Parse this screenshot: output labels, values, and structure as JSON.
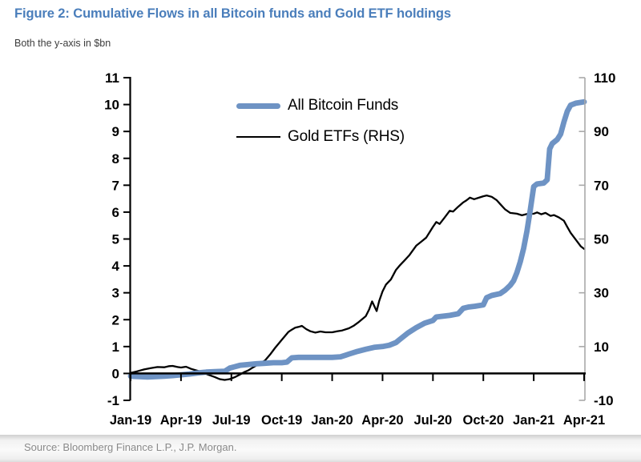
{
  "figure": {
    "title": "Figure 2: Cumulative Flows in all Bitcoin funds and Gold ETF holdings",
    "subtitle": "Both the y-axis in $bn",
    "source": "Source: Bloomberg Finance L.P., J.P. Morgan.",
    "title_color": "#4a7ebb"
  },
  "chart_data": {
    "type": "line",
    "title": "Cumulative Flows in all Bitcoin funds and Gold ETF holdings",
    "units_note": "Both the y-axis in $bn",
    "x_unit": "months since Jan-2019",
    "x_range": [
      0,
      27
    ],
    "x_tick_positions": [
      0,
      3,
      6,
      9,
      12,
      15,
      18,
      21,
      24,
      27
    ],
    "x_tick_labels": [
      "Jan-19",
      "Apr-19",
      "Jul-19",
      "Oct-19",
      "Jan-20",
      "Apr-20",
      "Jul-20",
      "Oct-20",
      "Jan-21",
      "Apr-21"
    ],
    "left_axis": {
      "min": -1,
      "max": 11,
      "ticks": [
        -1,
        0,
        1,
        2,
        3,
        4,
        5,
        6,
        7,
        8,
        9,
        10,
        11
      ],
      "color": "#000000"
    },
    "right_axis": {
      "min": -10,
      "max": 110,
      "ticks": [
        -10,
        10,
        30,
        50,
        70,
        90,
        110
      ],
      "color": "#a9a9a9"
    },
    "legend_position": "top-center",
    "grid": false,
    "series": [
      {
        "name": "All Bitcoin Funds",
        "axis": "left",
        "color": "#6e93c4",
        "width": 6.8,
        "points": [
          [
            0,
            -0.1
          ],
          [
            0.5,
            -0.12
          ],
          [
            1,
            -0.13
          ],
          [
            1.5,
            -0.12
          ],
          [
            2,
            -0.1
          ],
          [
            2.5,
            -0.08
          ],
          [
            3,
            -0.05
          ],
          [
            3.5,
            -0.02
          ],
          [
            4,
            0.02
          ],
          [
            4.5,
            0.05
          ],
          [
            5,
            0.07
          ],
          [
            5.6,
            0.08
          ],
          [
            5.9,
            0.2
          ],
          [
            6.2,
            0.25
          ],
          [
            6.5,
            0.3
          ],
          [
            7,
            0.33
          ],
          [
            7.5,
            0.36
          ],
          [
            8,
            0.38
          ],
          [
            8.5,
            0.4
          ],
          [
            9,
            0.4
          ],
          [
            9.3,
            0.42
          ],
          [
            9.45,
            0.5
          ],
          [
            9.6,
            0.58
          ],
          [
            10,
            0.6
          ],
          [
            10.5,
            0.6
          ],
          [
            11,
            0.6
          ],
          [
            11.5,
            0.6
          ],
          [
            12,
            0.6
          ],
          [
            12.5,
            0.62
          ],
          [
            12.8,
            0.68
          ],
          [
            13,
            0.72
          ],
          [
            13.5,
            0.82
          ],
          [
            14,
            0.9
          ],
          [
            14.5,
            0.97
          ],
          [
            15,
            1.0
          ],
          [
            15.4,
            1.05
          ],
          [
            15.8,
            1.15
          ],
          [
            16,
            1.25
          ],
          [
            16.5,
            1.5
          ],
          [
            17,
            1.7
          ],
          [
            17.5,
            1.87
          ],
          [
            18,
            1.97
          ],
          [
            18.2,
            2.1
          ],
          [
            18.6,
            2.13
          ],
          [
            19,
            2.16
          ],
          [
            19.5,
            2.22
          ],
          [
            19.8,
            2.42
          ],
          [
            20.1,
            2.47
          ],
          [
            20.5,
            2.5
          ],
          [
            21,
            2.55
          ],
          [
            21.2,
            2.82
          ],
          [
            21.5,
            2.9
          ],
          [
            22,
            2.97
          ],
          [
            22.3,
            3.1
          ],
          [
            22.6,
            3.28
          ],
          [
            22.8,
            3.45
          ],
          [
            23,
            3.75
          ],
          [
            23.2,
            4.15
          ],
          [
            23.4,
            4.65
          ],
          [
            23.6,
            5.3
          ],
          [
            23.8,
            6.1
          ],
          [
            24,
            6.95
          ],
          [
            24.2,
            7.05
          ],
          [
            24.6,
            7.08
          ],
          [
            24.8,
            7.2
          ],
          [
            24.95,
            8.35
          ],
          [
            25.1,
            8.55
          ],
          [
            25.4,
            8.7
          ],
          [
            25.6,
            8.9
          ],
          [
            25.8,
            9.35
          ],
          [
            26,
            9.75
          ],
          [
            26.2,
            9.98
          ],
          [
            26.5,
            10.05
          ],
          [
            26.8,
            10.08
          ],
          [
            27,
            10.1
          ]
        ]
      },
      {
        "name": "Gold ETFs (RHS)",
        "axis": "right",
        "color": "#000000",
        "width": 2.3,
        "points": [
          [
            0,
            0.2
          ],
          [
            0.4,
            0.8
          ],
          [
            0.8,
            1.5
          ],
          [
            1.2,
            2.0
          ],
          [
            1.6,
            2.4
          ],
          [
            2,
            2.3
          ],
          [
            2.3,
            2.7
          ],
          [
            2.5,
            2.8
          ],
          [
            2.8,
            2.4
          ],
          [
            3,
            2.2
          ],
          [
            3.3,
            2.5
          ],
          [
            3.6,
            1.7
          ],
          [
            4,
            1.0
          ],
          [
            4.3,
            0.4
          ],
          [
            4.6,
            -0.4
          ],
          [
            5,
            -1.3
          ],
          [
            5.3,
            -2.1
          ],
          [
            5.6,
            -2.4
          ],
          [
            5.9,
            -2.1
          ],
          [
            6.2,
            -1.4
          ],
          [
            6.5,
            -0.4
          ],
          [
            6.8,
            0.6
          ],
          [
            7,
            1.1
          ],
          [
            7.3,
            2.3
          ],
          [
            7.6,
            3.4
          ],
          [
            8,
            4.8
          ],
          [
            8.3,
            7.0
          ],
          [
            8.6,
            9.5
          ],
          [
            9,
            12.5
          ],
          [
            9.2,
            14.0
          ],
          [
            9.4,
            15.5
          ],
          [
            9.6,
            16.3
          ],
          [
            9.8,
            17.0
          ],
          [
            10,
            17.3
          ],
          [
            10.2,
            17.7
          ],
          [
            10.45,
            16.5
          ],
          [
            10.7,
            15.7
          ],
          [
            11,
            15.2
          ],
          [
            11.3,
            15.6
          ],
          [
            11.6,
            15.3
          ],
          [
            12,
            15.3
          ],
          [
            12.3,
            15.7
          ],
          [
            12.6,
            16.0
          ],
          [
            13,
            16.8
          ],
          [
            13.3,
            17.8
          ],
          [
            13.6,
            19.2
          ],
          [
            14,
            21.3
          ],
          [
            14.2,
            23.8
          ],
          [
            14.38,
            26.8
          ],
          [
            14.55,
            24.5
          ],
          [
            14.65,
            23.2
          ],
          [
            14.8,
            27.0
          ],
          [
            15,
            30.5
          ],
          [
            15.2,
            33.0
          ],
          [
            15.5,
            35.0
          ],
          [
            15.8,
            38.5
          ],
          [
            16,
            40.0
          ],
          [
            16.3,
            42.0
          ],
          [
            16.6,
            44.0
          ],
          [
            17,
            47.5
          ],
          [
            17.3,
            49.0
          ],
          [
            17.6,
            50.5
          ],
          [
            17.8,
            52.5
          ],
          [
            18,
            54.5
          ],
          [
            18.2,
            56.3
          ],
          [
            18.4,
            55.6
          ],
          [
            18.7,
            58.0
          ],
          [
            19,
            60.5
          ],
          [
            19.2,
            60.2
          ],
          [
            19.5,
            62.0
          ],
          [
            19.8,
            63.6
          ],
          [
            20,
            64.4
          ],
          [
            20.2,
            65.4
          ],
          [
            20.45,
            64.8
          ],
          [
            20.7,
            65.3
          ],
          [
            21,
            65.9
          ],
          [
            21.2,
            66.2
          ],
          [
            21.5,
            65.7
          ],
          [
            21.8,
            64.4
          ],
          [
            22,
            63.0
          ],
          [
            22.3,
            61.0
          ],
          [
            22.6,
            59.7
          ],
          [
            23,
            59.4
          ],
          [
            23.3,
            58.8
          ],
          [
            23.6,
            59.3
          ],
          [
            24,
            59.4
          ],
          [
            24.2,
            59.9
          ],
          [
            24.45,
            59.2
          ],
          [
            24.7,
            59.7
          ],
          [
            25,
            58.6
          ],
          [
            25.2,
            58.9
          ],
          [
            25.5,
            58.0
          ],
          [
            25.8,
            56.8
          ],
          [
            26,
            54.5
          ],
          [
            26.2,
            52.3
          ],
          [
            26.5,
            49.8
          ],
          [
            26.8,
            47.3
          ],
          [
            27,
            46.3
          ]
        ]
      }
    ]
  }
}
